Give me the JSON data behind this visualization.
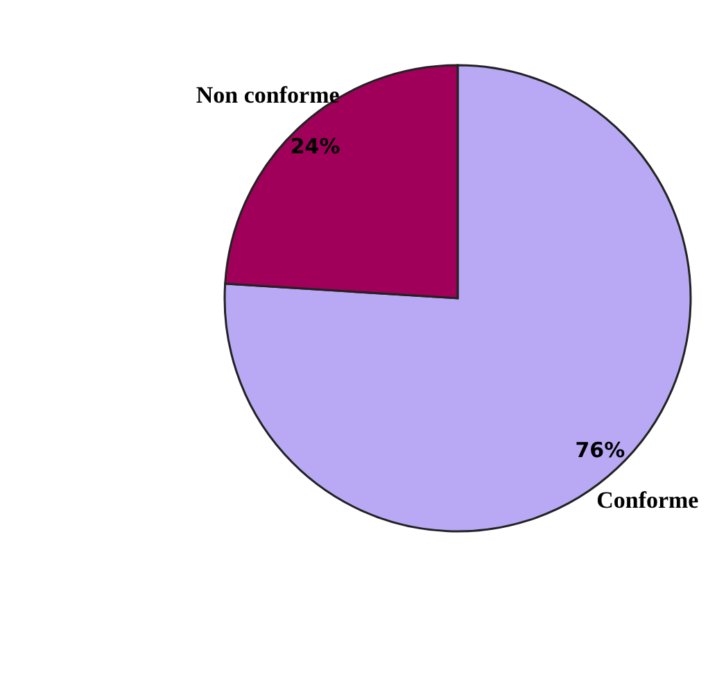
{
  "chart_data": {
    "type": "pie",
    "categories": [
      "Conforme",
      "Non conforme"
    ],
    "values": [
      76,
      24
    ],
    "colors": [
      "#b9a9f5",
      "#a0005a"
    ],
    "value_labels": [
      "76%",
      "24%"
    ]
  }
}
